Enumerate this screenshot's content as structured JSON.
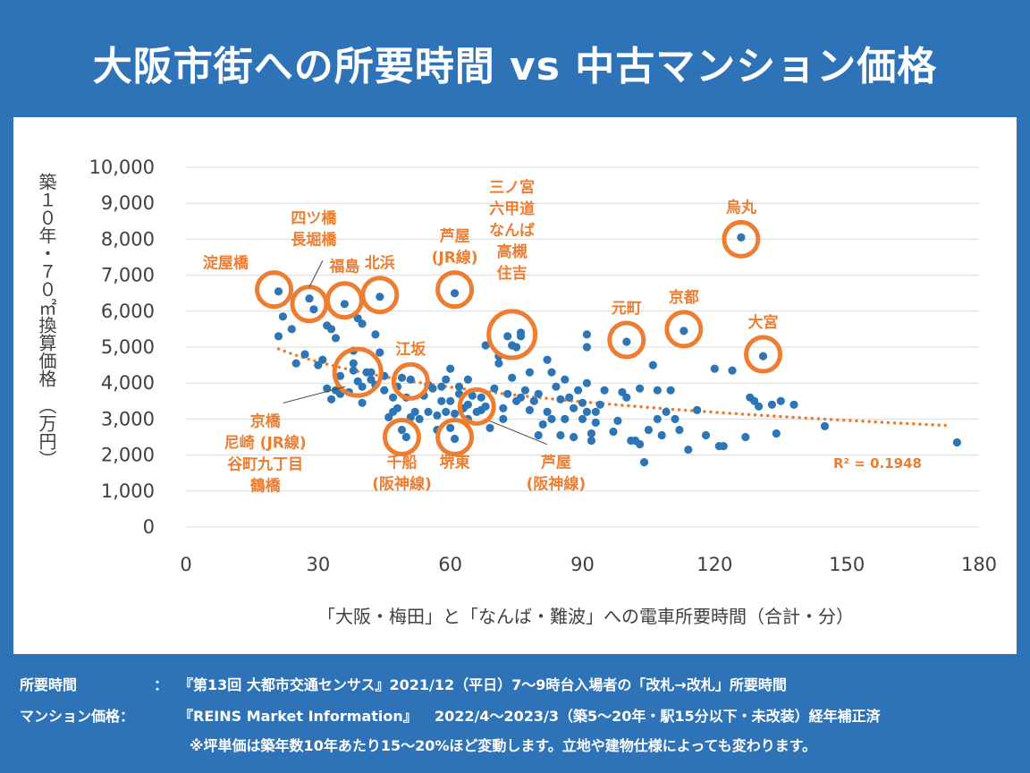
{
  "title": "大阪市街への所要時間 vs 中古マンション価格",
  "footnotes": {
    "l1_label": "所要時間",
    "l1_colon": "：",
    "l1_text": "『第13回 大都市交通センサス』2021/12（平日）7～9時台入場者の「改札→改札」所要時間",
    "l2_label": "マンション価格：",
    "l2_source": "『REINS Market Information』",
    "l2_text": "2022/4～2023/3（築5～20年・駅15分以下・未改装）経年補正済",
    "l3_text": "※坪単価は築年数10年あたり15～20%ほど変動します。立地や建物仕様によっても変わります。"
  },
  "colors": {
    "background": "#2e72b8",
    "points": "#2e75b6",
    "accent": "#ed7d31",
    "grid": "#d9d9d9"
  },
  "chart_data": {
    "type": "scatter",
    "xlabel": "「大阪・梅田」と「なんば・難波」への電車所要時間（合計・分）",
    "ylabel": "築１０年・７０㎡換算価格　（万円）",
    "xlim": [
      0,
      180
    ],
    "ylim": [
      0,
      10000
    ],
    "x_ticks": [
      "0",
      "30",
      "60",
      "90",
      "120",
      "150",
      "180"
    ],
    "y_ticks": [
      "0",
      "1,000",
      "2,000",
      "3,000",
      "4,000",
      "5,000",
      "6,000",
      "7,000",
      "8,000",
      "9,000",
      "10,000"
    ],
    "grid": "horizontal",
    "trendline": {
      "type": "log",
      "style": "dotted",
      "start": [
        21,
        4950
      ],
      "end": [
        173,
        2820
      ]
    },
    "r_squared": "R² = 0.1948",
    "points": [
      [
        21,
        6550
      ],
      [
        21,
        5300
      ],
      [
        22,
        5850
      ],
      [
        24,
        5500
      ],
      [
        25,
        4550
      ],
      [
        27,
        4800
      ],
      [
        28,
        6350
      ],
      [
        29,
        6050
      ],
      [
        30,
        4500
      ],
      [
        31,
        4650
      ],
      [
        32,
        3850
      ],
      [
        32,
        5600
      ],
      [
        33,
        5500
      ],
      [
        34,
        5250
      ],
      [
        33,
        3550
      ],
      [
        34,
        3800
      ],
      [
        35,
        4200
      ],
      [
        35,
        3700
      ],
      [
        36,
        6200
      ],
      [
        37,
        3750
      ],
      [
        38,
        4350
      ],
      [
        38,
        4550
      ],
      [
        38,
        4900
      ],
      [
        39,
        5800
      ],
      [
        39,
        4050
      ],
      [
        40,
        5650
      ],
      [
        40,
        3450
      ],
      [
        40,
        3900
      ],
      [
        41,
        4300
      ],
      [
        42,
        4100
      ],
      [
        42,
        4300
      ],
      [
        43,
        3950
      ],
      [
        43,
        5350
      ],
      [
        44,
        6400
      ],
      [
        44,
        4850
      ],
      [
        45,
        3800
      ],
      [
        45,
        4200
      ],
      [
        46,
        3050
      ],
      [
        47,
        3600
      ],
      [
        47,
        3200
      ],
      [
        48,
        3900
      ],
      [
        48,
        3300
      ],
      [
        49,
        4150
      ],
      [
        49,
        2700
      ],
      [
        50,
        2500
      ],
      [
        50,
        3600
      ],
      [
        51,
        3050
      ],
      [
        51,
        4100
      ],
      [
        52,
        3200
      ],
      [
        53,
        3000
      ],
      [
        54,
        3650
      ],
      [
        55,
        3200
      ],
      [
        55,
        3950
      ],
      [
        56,
        3850
      ],
      [
        57,
        3100
      ],
      [
        57,
        2700
      ],
      [
        58,
        3500
      ],
      [
        58,
        3900
      ],
      [
        59,
        3200
      ],
      [
        59,
        4100
      ],
      [
        60,
        4400
      ],
      [
        60,
        3500
      ],
      [
        60,
        2750
      ],
      [
        61,
        6500
      ],
      [
        61,
        3150
      ],
      [
        61,
        2450
      ],
      [
        62,
        3900
      ],
      [
        62,
        3700
      ],
      [
        63,
        3300
      ],
      [
        64,
        3400
      ],
      [
        64,
        3000
      ],
      [
        64,
        4100
      ],
      [
        65,
        3650
      ],
      [
        66,
        3200
      ],
      [
        67,
        3250
      ],
      [
        67,
        3600
      ],
      [
        68,
        3350
      ],
      [
        68,
        5050
      ],
      [
        69,
        2750
      ],
      [
        70,
        3850
      ],
      [
        71,
        4750
      ],
      [
        71,
        4550
      ],
      [
        72,
        3000
      ],
      [
        72,
        3300
      ],
      [
        73,
        3700
      ],
      [
        73,
        5300
      ],
      [
        74,
        5050
      ],
      [
        74,
        4150
      ],
      [
        75,
        3500
      ],
      [
        75,
        5000
      ],
      [
        76,
        5400
      ],
      [
        76,
        5300
      ],
      [
        76,
        3600
      ],
      [
        77,
        3800
      ],
      [
        78,
        3250
      ],
      [
        78,
        4300
      ],
      [
        79,
        3500
      ],
      [
        80,
        3700
      ],
      [
        80,
        2550
      ],
      [
        81,
        2850
      ],
      [
        82,
        3200
      ],
      [
        82,
        4650
      ],
      [
        83,
        4300
      ],
      [
        83,
        3000
      ],
      [
        84,
        3900
      ],
      [
        85,
        3550
      ],
      [
        85,
        2550
      ],
      [
        86,
        4100
      ],
      [
        86,
        3000
      ],
      [
        87,
        3600
      ],
      [
        88,
        3300
      ],
      [
        88,
        2500
      ],
      [
        89,
        3800
      ],
      [
        90,
        3450
      ],
      [
        90,
        3000
      ],
      [
        91,
        5350
      ],
      [
        91,
        5000
      ],
      [
        91,
        4000
      ],
      [
        91,
        3200
      ],
      [
        92,
        2400
      ],
      [
        92,
        2600
      ],
      [
        93,
        3200
      ],
      [
        93,
        2900
      ],
      [
        94,
        3400
      ],
      [
        95,
        3800
      ],
      [
        97,
        2650
      ],
      [
        98,
        2950
      ],
      [
        99,
        3750
      ],
      [
        100,
        5150
      ],
      [
        100,
        3600
      ],
      [
        101,
        2400
      ],
      [
        102,
        2400
      ],
      [
        103,
        3850
      ],
      [
        103,
        2300
      ],
      [
        104,
        1800
      ],
      [
        105,
        2700
      ],
      [
        106,
        4500
      ],
      [
        107,
        3800
      ],
      [
        107,
        3000
      ],
      [
        108,
        2550
      ],
      [
        109,
        3200
      ],
      [
        110,
        3800
      ],
      [
        111,
        3000
      ],
      [
        112,
        2700
      ],
      [
        113,
        5450
      ],
      [
        114,
        2150
      ],
      [
        116,
        3250
      ],
      [
        118,
        2550
      ],
      [
        120,
        4400
      ],
      [
        121,
        2250
      ],
      [
        122,
        2250
      ],
      [
        124,
        4350
      ],
      [
        126,
        8050
      ],
      [
        127,
        2500
      ],
      [
        128,
        3600
      ],
      [
        129,
        3500
      ],
      [
        130,
        3350
      ],
      [
        131,
        4750
      ],
      [
        133,
        3400
      ],
      [
        134,
        2600
      ],
      [
        135,
        3500
      ],
      [
        138,
        3400
      ],
      [
        145,
        2800
      ],
      [
        175,
        2350
      ]
    ],
    "annotations": [
      {
        "lines": [
          "淀屋橋"
        ],
        "circle": [
          20,
          6600
        ],
        "label": [
          9,
          7200
        ]
      },
      {
        "lines": [
          "四ツ橋",
          "長堀橋"
        ],
        "circle": [
          28,
          6200
        ],
        "label": [
          29,
          8450
        ]
      },
      {
        "lines": [
          "福島"
        ],
        "circle": [
          36,
          6300
        ],
        "label": [
          36,
          7100
        ]
      },
      {
        "lines": [
          "北浜"
        ],
        "circle": [
          44,
          6450
        ],
        "label": [
          44,
          7200
        ]
      },
      {
        "lines": [
          "芦屋",
          "(JR線)"
        ],
        "circle": [
          61,
          6600
        ],
        "label": [
          61,
          7950
        ]
      },
      {
        "lines": [
          "三ノ宮",
          "六甲道",
          "なんば",
          "高槻",
          "住吉"
        ],
        "circle": [
          74,
          5350
        ],
        "label": [
          74,
          9300
        ]
      },
      {
        "lines": [
          "江坂"
        ],
        "circle": [
          51,
          4050
        ],
        "label": [
          51,
          4800
        ]
      },
      {
        "lines": [
          "元町"
        ],
        "circle": [
          100,
          5200
        ],
        "label": [
          100,
          5950
        ]
      },
      {
        "lines": [
          "京都"
        ],
        "circle": [
          113,
          5500
        ],
        "label": [
          113,
          6250
        ]
      },
      {
        "lines": [
          "烏丸"
        ],
        "circle": [
          126,
          8000
        ],
        "label": [
          126,
          8750
        ]
      },
      {
        "lines": [
          "大宮"
        ],
        "circle": [
          131,
          4800
        ],
        "label": [
          131,
          5550
        ]
      },
      {
        "lines": [
          "京橋",
          "尼崎 (JR線)",
          "谷町九丁目",
          "鶴橋"
        ],
        "circle": [
          39,
          4300
        ],
        "label": [
          18,
          2800
        ]
      },
      {
        "lines": [
          "千船",
          "(阪神線)"
        ],
        "circle": [
          49,
          2500
        ],
        "label": [
          49,
          1650
        ]
      },
      {
        "lines": [
          "堺東"
        ],
        "circle": [
          61,
          2500
        ],
        "label": [
          61,
          1650
        ]
      },
      {
        "lines": [
          "芦屋",
          "(阪神線)"
        ],
        "circle": [
          66,
          3350
        ],
        "label": [
          84,
          1650
        ]
      }
    ]
  }
}
